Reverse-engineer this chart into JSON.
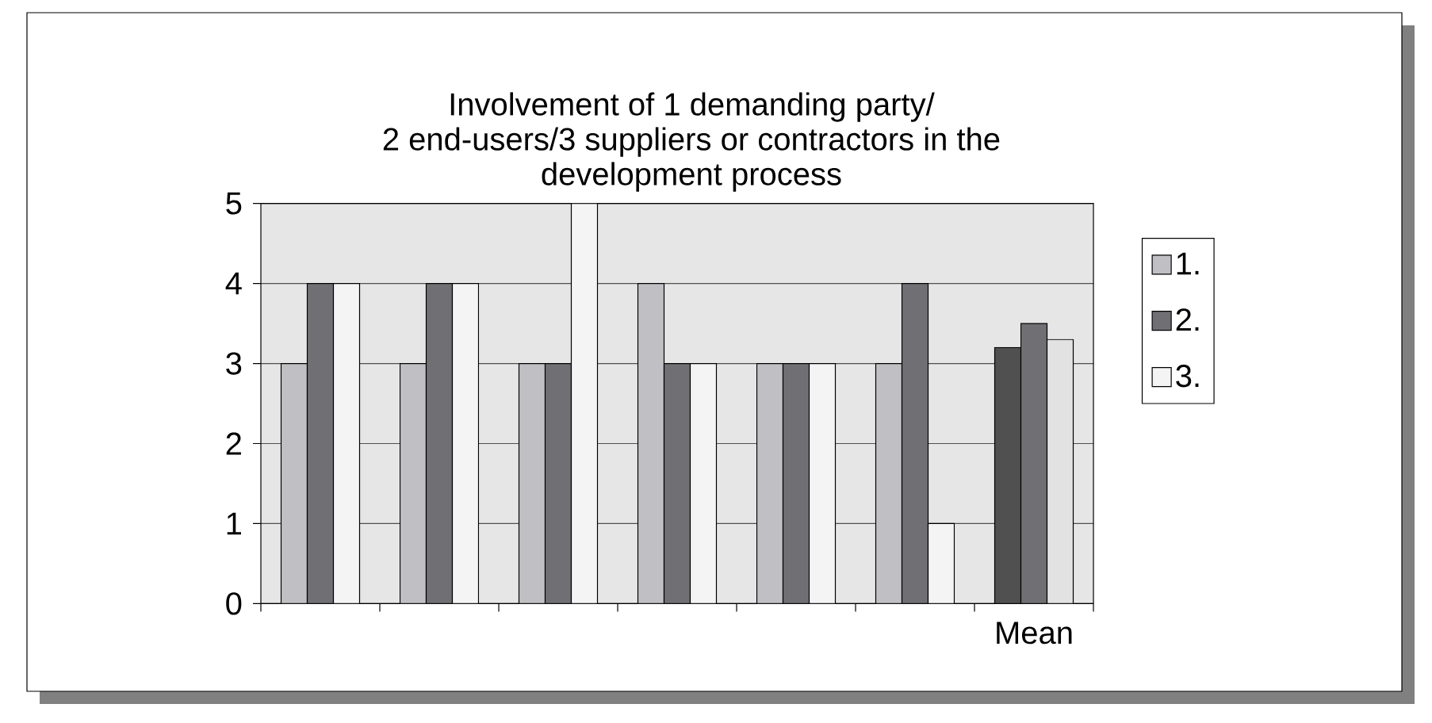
{
  "chart_data": {
    "type": "bar",
    "title": "Involvement of 1 demanding party/ 2 end-users/3 suppliers or contractors in the development process",
    "categories": [
      null,
      null,
      null,
      null,
      null,
      null,
      "Mean"
    ],
    "series": [
      {
        "name": "1.",
        "color": "#c0c0c4",
        "colors": [
          "#c0c0c4",
          "#c0c0c4",
          "#c0c0c4",
          "#c0c0c4",
          "#c0c0c4",
          "#c0c0c4",
          "#505050"
        ],
        "values": [
          3,
          3,
          3,
          4,
          3,
          3,
          3.2
        ]
      },
      {
        "name": "2.",
        "color": "#707074",
        "values": [
          4,
          4,
          3,
          3,
          3,
          4,
          3.5
        ]
      },
      {
        "name": "3.",
        "color": "#f4f4f4",
        "colors": [
          "#f4f4f4",
          "#f4f4f4",
          "#f4f4f4",
          "#f4f4f4",
          "#f4f4f4",
          "#f4f4f4",
          "#e2e2e2"
        ],
        "values": [
          4,
          4,
          5,
          3,
          3,
          1,
          3.3
        ]
      }
    ],
    "ylim": [
      0,
      5
    ],
    "yticks": [
      0,
      1,
      2,
      3,
      4,
      5
    ],
    "grid": "y",
    "legend": "right"
  }
}
